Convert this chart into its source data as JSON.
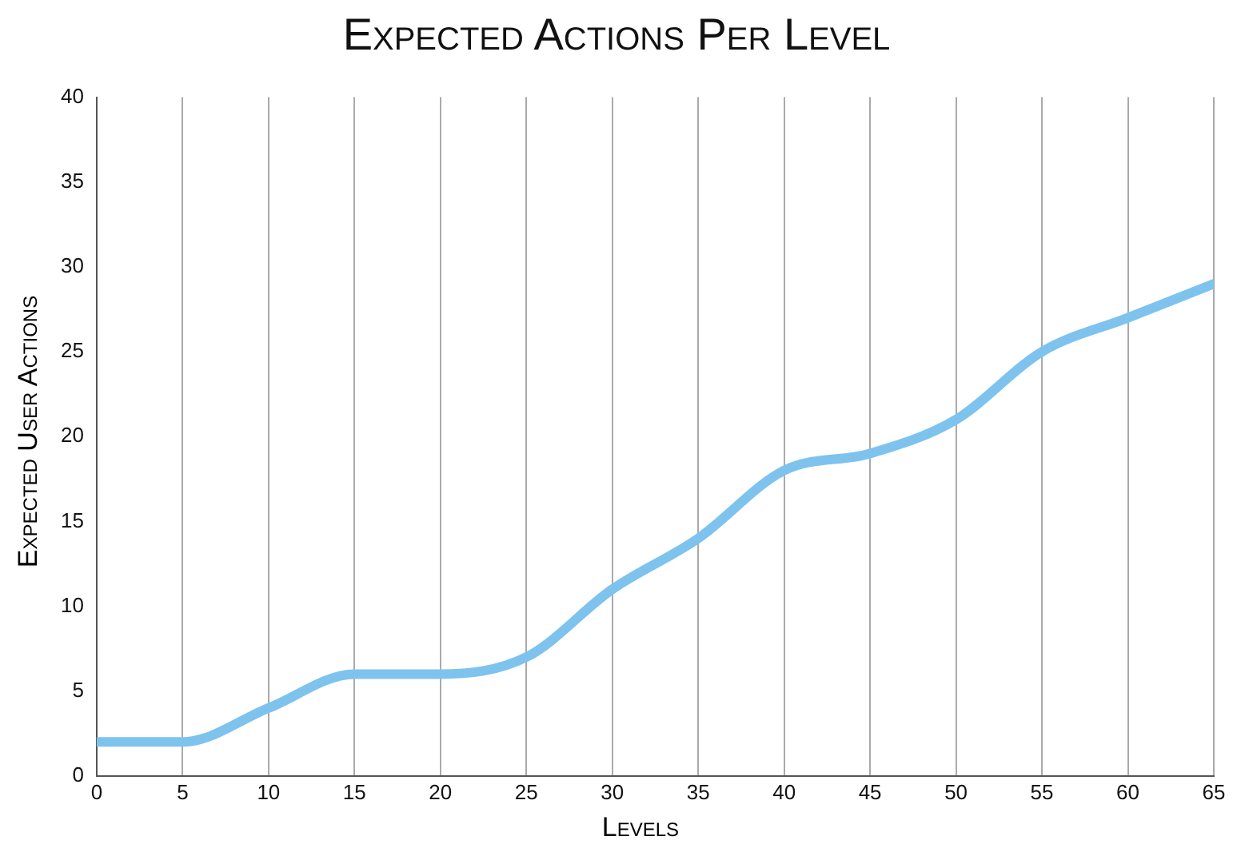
{
  "chart_data": {
    "type": "line",
    "title": "Expected Actions Per Level",
    "xlabel": "Levels",
    "ylabel": "Expected User Actions",
    "x": [
      0,
      5,
      10,
      15,
      20,
      25,
      30,
      35,
      40,
      45,
      50,
      55,
      60,
      65
    ],
    "series": [
      {
        "color": "#7ec3ee",
        "values": [
          2,
          2,
          4,
          6,
          6,
          7,
          11,
          14,
          18,
          19,
          21,
          25,
          27,
          29
        ]
      }
    ],
    "xlim": [
      0,
      65
    ],
    "xticks": [
      0,
      5,
      10,
      15,
      20,
      25,
      30,
      35,
      40,
      45,
      50,
      55,
      60,
      65
    ],
    "ylim": [
      0,
      40
    ],
    "yticks": [
      0,
      5,
      10,
      15,
      20,
      25,
      30,
      35,
      40
    ],
    "grid": "x",
    "legend": false,
    "marker": "none",
    "line_style": "solid"
  }
}
